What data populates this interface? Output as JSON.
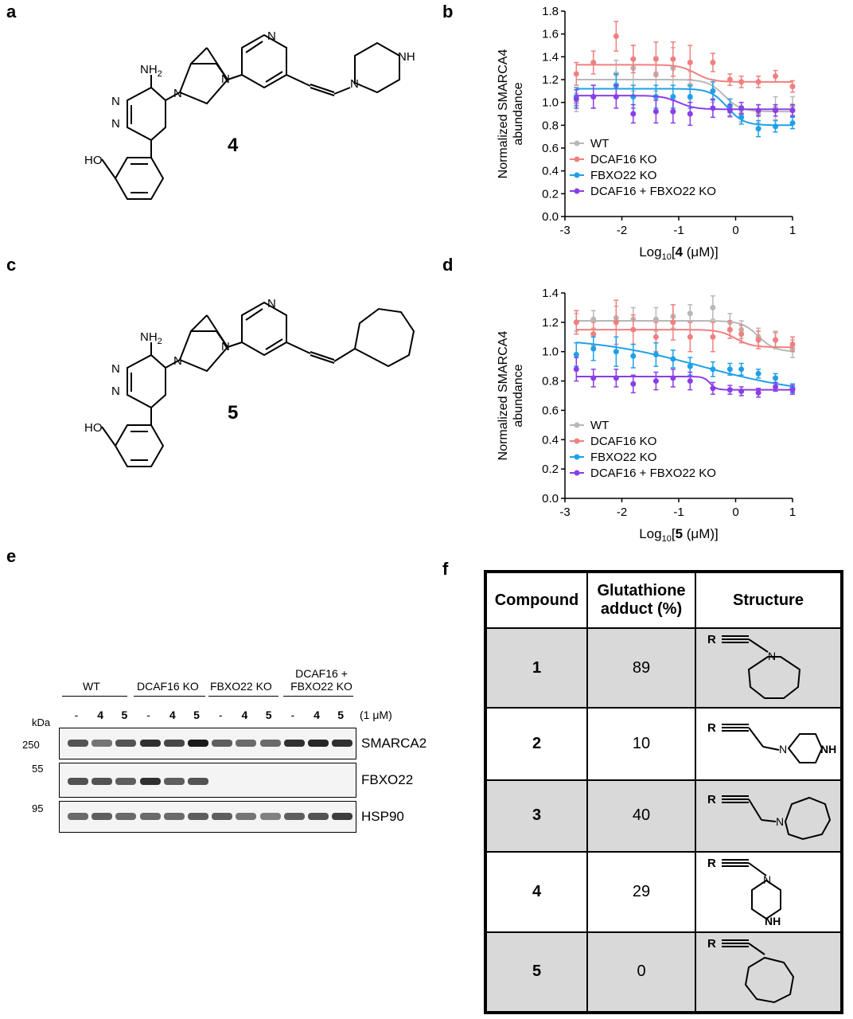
{
  "panels": {
    "a": "a",
    "b": "b",
    "c": "c",
    "d": "d",
    "e": "e",
    "f": "f"
  },
  "structures": {
    "compound_a_label": "4",
    "compound_c_label": "5",
    "nh2": "NH",
    "nh2_sub": "2",
    "n": "N",
    "nh": "NH",
    "ho": "HO",
    "r": "R"
  },
  "chart_data": [
    {
      "type": "line",
      "panel": "b",
      "ylabel": "Normalized SMARCA4 abundance",
      "ylabel_line1": "Normalized SMARCA4",
      "ylabel_line2": "abundance",
      "xlabel_prefix": "Log",
      "xlabel_sub": "10",
      "xlabel_open": "[",
      "xlabel_bold": "4",
      "xlabel_suffix": " (μM)]",
      "ylim": [
        0,
        1.8
      ],
      "xlim": [
        -3,
        1
      ],
      "yticks": [
        "0.0",
        "0.2",
        "0.4",
        "0.6",
        "0.8",
        "1.0",
        "1.2",
        "1.4",
        "1.6",
        "1.8"
      ],
      "xticks": [
        "-3",
        "-2",
        "-1",
        "0",
        "1"
      ],
      "legend_placement": "bottom-left",
      "x": [
        -2.8,
        -2.5,
        -2.1,
        -1.8,
        -1.4,
        -1.1,
        -0.8,
        -0.4,
        -0.1,
        0.1,
        0.4,
        0.7,
        1.0
      ],
      "series": [
        {
          "name": "WT",
          "color": "#b8b8b8",
          "values": [
            1.0,
            1.05,
            1.25,
            1.3,
            1.25,
            1.3,
            1.15,
            1.1,
            0.95,
            0.9,
            0.9,
            0.95,
            0.97
          ],
          "errors": [
            0.08,
            0.1,
            0.12,
            0.2,
            0.15,
            0.18,
            0.12,
            0.1,
            0.08,
            0.07,
            0.08,
            0.1,
            0.08
          ],
          "fit_top": 1.2,
          "fit_bottom": 0.92,
          "ec50": -0.2
        },
        {
          "name": "DCAF16 KO",
          "color": "#f08080",
          "values": [
            1.25,
            1.35,
            1.58,
            1.38,
            1.38,
            1.38,
            1.35,
            1.35,
            1.2,
            1.18,
            1.18,
            1.23,
            1.14
          ],
          "errors": [
            0.1,
            0.1,
            0.13,
            0.12,
            0.15,
            0.15,
            0.15,
            0.08,
            0.05,
            0.05,
            0.05,
            0.05,
            0.05
          ],
          "fit_top": 1.33,
          "fit_bottom": 1.18,
          "ec50": -0.7
        },
        {
          "name": "FBXO22 KO",
          "color": "#1fa0e8",
          "values": [
            1.05,
            1.05,
            1.15,
            1.05,
            1.05,
            1.05,
            1.05,
            1.1,
            0.97,
            0.87,
            0.77,
            0.79,
            0.82
          ],
          "errors": [
            0.08,
            0.1,
            0.1,
            0.1,
            0.1,
            0.1,
            0.1,
            0.08,
            0.06,
            0.06,
            0.07,
            0.05,
            0.05
          ],
          "fit_top": 1.12,
          "fit_bottom": 0.8,
          "ec50": -0.15
        },
        {
          "name": "DCAF16 + FBXO22 KO",
          "color": "#8a3ee6",
          "values": [
            1.03,
            1.05,
            1.05,
            0.9,
            0.92,
            0.92,
            0.9,
            0.95,
            0.93,
            0.95,
            0.93,
            0.93,
            0.93
          ],
          "errors": [
            0.08,
            0.1,
            0.1,
            0.08,
            0.1,
            0.1,
            0.1,
            0.08,
            0.05,
            0.05,
            0.05,
            0.05,
            0.05
          ],
          "fit_top": 1.06,
          "fit_bottom": 0.94,
          "ec50": -1.0
        }
      ]
    },
    {
      "type": "line",
      "panel": "d",
      "ylabel": "Normalized SMARCA4 abundance",
      "ylabel_line1": "Normalized SMARCA4",
      "ylabel_line2": "abundance",
      "xlabel_prefix": "Log",
      "xlabel_sub": "10",
      "xlabel_open": "[",
      "xlabel_bold": "5",
      "xlabel_suffix": " (μM)]",
      "ylim": [
        0,
        1.4
      ],
      "xlim": [
        -3,
        1
      ],
      "yticks": [
        "0.0",
        "0.2",
        "0.4",
        "0.6",
        "0.8",
        "1.0",
        "1.2",
        "1.4"
      ],
      "xticks": [
        "-3",
        "-2",
        "-1",
        "0",
        "1"
      ],
      "legend_placement": "bottom-left",
      "x": [
        -2.8,
        -2.5,
        -2.1,
        -1.8,
        -1.4,
        -1.1,
        -0.8,
        -0.4,
        -0.1,
        0.1,
        0.4,
        0.7,
        1.0
      ],
      "series": [
        {
          "name": "WT",
          "color": "#b8b8b8",
          "values": [
            1.2,
            1.22,
            1.23,
            1.22,
            1.22,
            1.24,
            1.26,
            1.3,
            1.2,
            1.15,
            1.1,
            1.08,
            1.02
          ],
          "errors": [
            0.06,
            0.06,
            0.08,
            0.08,
            0.08,
            0.08,
            0.06,
            0.08,
            0.06,
            0.06,
            0.06,
            0.06,
            0.06
          ],
          "fit_top": 1.21,
          "fit_bottom": 1.0,
          "ec50": 0.4
        },
        {
          "name": "DCAF16 KO",
          "color": "#f08080",
          "values": [
            1.2,
            1.12,
            1.2,
            1.15,
            1.1,
            1.2,
            1.1,
            1.1,
            1.15,
            1.12,
            1.08,
            1.08,
            1.05
          ],
          "errors": [
            0.08,
            0.08,
            0.15,
            0.1,
            0.1,
            0.12,
            0.1,
            0.1,
            0.06,
            0.06,
            0.06,
            0.05,
            0.05
          ],
          "fit_top": 1.15,
          "fit_bottom": 1.03,
          "ec50": 0.0
        },
        {
          "name": "FBXO22 KO",
          "color": "#1fa0e8",
          "values": [
            0.98,
            1.02,
            1.0,
            0.97,
            0.98,
            0.95,
            0.9,
            0.88,
            0.88,
            0.88,
            0.85,
            0.82,
            0.75
          ],
          "errors": [
            0.08,
            0.08,
            0.1,
            0.08,
            0.08,
            0.06,
            0.06,
            0.05,
            0.04,
            0.04,
            0.03,
            0.03,
            0.03
          ],
          "fit_top": 1.1,
          "fit_bottom": 0.7,
          "ec50": -0.6,
          "hill": 0.45
        },
        {
          "name": "DCAF16 + FBXO22 KO",
          "color": "#8a3ee6",
          "values": [
            0.88,
            0.82,
            0.82,
            0.78,
            0.8,
            0.82,
            0.8,
            0.75,
            0.74,
            0.73,
            0.72,
            0.76,
            0.74
          ],
          "errors": [
            0.08,
            0.06,
            0.06,
            0.06,
            0.06,
            0.06,
            0.06,
            0.04,
            0.03,
            0.03,
            0.03,
            0.03,
            0.03
          ],
          "fit_top": 0.83,
          "fit_bottom": 0.74,
          "ec50": -0.45,
          "hill": 8
        }
      ]
    }
  ],
  "western": {
    "groups": [
      "WT",
      "DCAF16 KO",
      "FBXO22 KO"
    ],
    "group4_line1": "DCAF16 +",
    "group4_line2": "FBXO22 KO",
    "lanes": [
      "-",
      "4",
      "5",
      "-",
      "4",
      "5",
      "-",
      "4",
      "5",
      "-",
      "4",
      "5"
    ],
    "dose": "(1 μM)",
    "kda": "kDa",
    "markers": [
      "250",
      "55",
      "95"
    ],
    "blots": [
      "SMARCA2",
      "FBXO22",
      "HSP90"
    ],
    "smarca2_intensity": [
      0.75,
      0.6,
      0.75,
      0.9,
      0.8,
      1.0,
      0.7,
      0.65,
      0.65,
      0.9,
      0.95,
      0.9
    ],
    "fbxo22_intensity": [
      0.75,
      0.75,
      0.7,
      0.9,
      0.7,
      0.75,
      0.05,
      0.05,
      0.05,
      0.05,
      0.05,
      0.05
    ],
    "hsp90_intensity": [
      0.65,
      0.7,
      0.65,
      0.65,
      0.65,
      0.7,
      0.7,
      0.6,
      0.55,
      0.7,
      0.75,
      0.85
    ]
  },
  "table": {
    "headers": [
      "Compound",
      "Glutathione adduct (%)",
      "Structure"
    ],
    "header2_line1": "Glutathione",
    "header2_line2": "adduct (%)",
    "rows": [
      {
        "compound": "1",
        "adduct": "89"
      },
      {
        "compound": "2",
        "adduct": "10"
      },
      {
        "compound": "3",
        "adduct": "40"
      },
      {
        "compound": "4",
        "adduct": "29"
      },
      {
        "compound": "5",
        "adduct": "0"
      }
    ]
  }
}
